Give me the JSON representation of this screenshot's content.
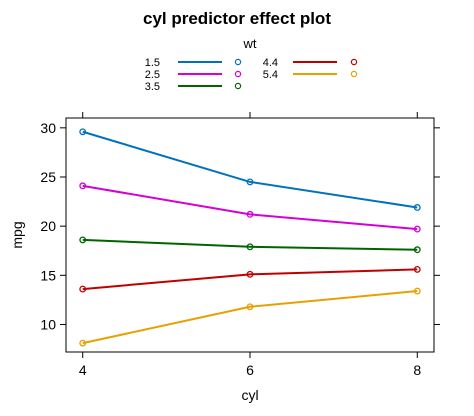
{
  "chart_data": {
    "type": "line",
    "title": "cyl predictor effect plot",
    "xlabel": "cyl",
    "ylabel": "mpg",
    "x": [
      4,
      6,
      8
    ],
    "xlim": [
      3.8,
      8.2
    ],
    "ylim": [
      7.2,
      31.0
    ],
    "xticks": [
      4,
      6,
      8
    ],
    "yticks": [
      10,
      15,
      20,
      25,
      30
    ],
    "legend": {
      "title": "wt",
      "placement": "top"
    },
    "series": [
      {
        "name": "1.5",
        "color": "#0072bd",
        "values": [
          29.6,
          24.5,
          21.9
        ]
      },
      {
        "name": "2.5",
        "color": "#d600d6",
        "values": [
          24.1,
          21.2,
          19.7
        ]
      },
      {
        "name": "3.5",
        "color": "#006400",
        "values": [
          18.6,
          17.9,
          17.6
        ]
      },
      {
        "name": "4.4",
        "color": "#c00000",
        "values": [
          13.6,
          15.1,
          15.6
        ]
      },
      {
        "name": "5.4",
        "color": "#e8a000",
        "values": [
          8.1,
          11.8,
          13.4
        ]
      }
    ]
  }
}
